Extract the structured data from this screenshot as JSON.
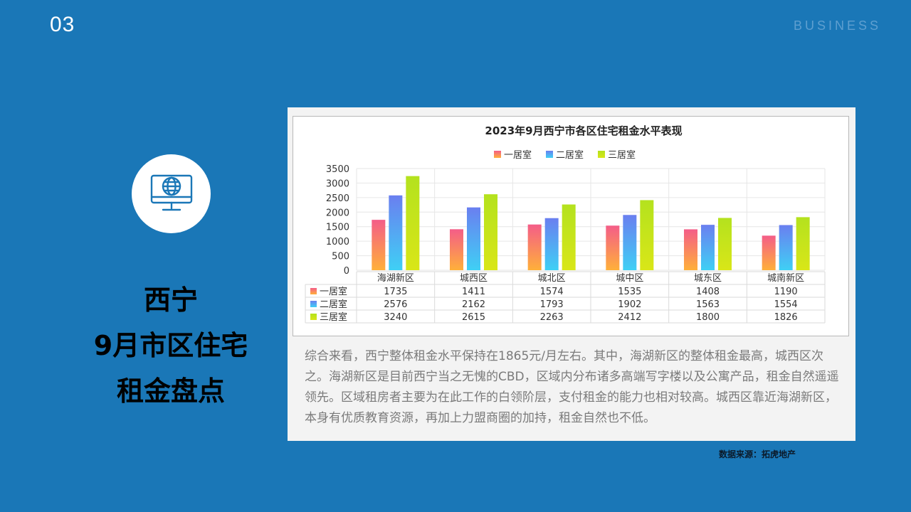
{
  "slide": {
    "number": "03",
    "brand": "BUSINESS"
  },
  "heading": {
    "line1": "西宁",
    "line2": "9月市区住宅",
    "line3": "租金盘点"
  },
  "icon": "globe-monitor-icon",
  "chart_data": {
    "type": "bar",
    "title": "2023年9月西宁市各区住宅租金水平表现",
    "categories": [
      "海湖新区",
      "城西区",
      "城北区",
      "城中区",
      "城东区",
      "城南新区"
    ],
    "series": [
      {
        "name": "一居室",
        "values": [
          1735,
          1411,
          1574,
          1535,
          1408,
          1190
        ],
        "color_top": "#f45d88",
        "color_bottom": "#ffb03a"
      },
      {
        "name": "二居室",
        "values": [
          2576,
          2162,
          1793,
          1902,
          1563,
          1554
        ],
        "color_top": "#6a7ff0",
        "color_bottom": "#3fd0f5"
      },
      {
        "name": "三居室",
        "values": [
          3240,
          2615,
          2263,
          2412,
          1800,
          1826
        ],
        "color_top": "#b4e21e",
        "color_bottom": "#d9e618"
      }
    ],
    "yticks": [
      0,
      500,
      1000,
      1500,
      2000,
      2500,
      3000,
      3500
    ],
    "ylim": [
      0,
      3500
    ],
    "legend_position": "top-center",
    "data_table": true,
    "grid": true
  },
  "description": "综合来看，西宁整体租金水平保持在1865元/月左右。其中，海湖新区的整体租金最高，城西区次之。海湖新区是目前西宁当之无愧的CBD，区域内分布诸多高端写字楼以及公寓产品，租金自然遥遥领先。区域租房者主要为在此工作的白领阶层，支付租金的能力也相对较高。城西区靠近海湖新区，本身有优质教育资源，再加上力盟商圈的加持，租金自然也不低。",
  "source": "数据来源：拓虎地产"
}
